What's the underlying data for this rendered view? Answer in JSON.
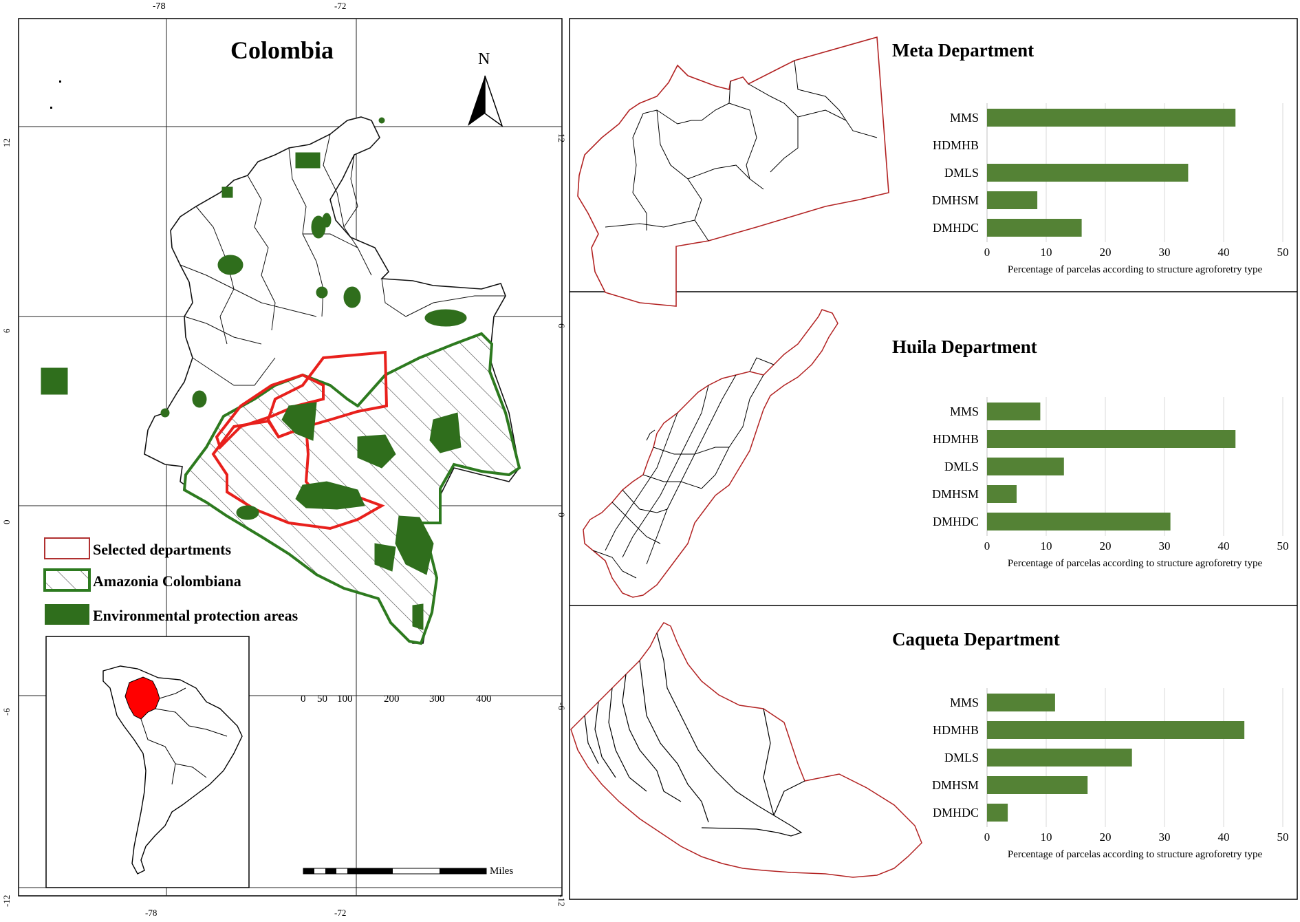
{
  "map": {
    "title": "Colombia",
    "north_label": "N",
    "lon_labels": [
      "-78",
      "-72"
    ],
    "lat_labels": [
      "12",
      "6",
      "0",
      "-6",
      "-12"
    ],
    "legend": {
      "selected": "Selected departments",
      "amazonia": "Amazonia Colombiana",
      "protection": "Environmental protection areas"
    },
    "scale": {
      "ticks": [
        "0",
        "50",
        "100",
        "200",
        "300",
        "400"
      ],
      "unit": "Miles"
    },
    "colors": {
      "department_border": "#e8201c",
      "amazonia_border": "#2d7a1f",
      "protection_fill": "#2f6e1c",
      "highlight": "#ff0000"
    }
  },
  "chart_data": [
    {
      "type": "bar",
      "orientation": "horizontal",
      "title": "Meta Department",
      "categories": [
        "MMS",
        "HDMHB",
        "DMLS",
        "DMHSM",
        "DMHDC"
      ],
      "values": [
        42,
        0,
        34,
        8.5,
        16
      ],
      "xlim": [
        0,
        50
      ],
      "xticks": [
        "0",
        "10",
        "20",
        "30",
        "40",
        "50"
      ],
      "xlabel": "Percentage of parcelas according to structure agroforetry type",
      "bar_color": "#548235"
    },
    {
      "type": "bar",
      "orientation": "horizontal",
      "title": "Huila Department",
      "categories": [
        "MMS",
        "HDMHB",
        "DMLS",
        "DMHSM",
        "DMHDC"
      ],
      "values": [
        9,
        42,
        13,
        5,
        31
      ],
      "xlim": [
        0,
        50
      ],
      "xticks": [
        "0",
        "10",
        "20",
        "30",
        "40",
        "50"
      ],
      "xlabel": "Percentage of parcelas according to structure agroforetry type",
      "bar_color": "#548235"
    },
    {
      "type": "bar",
      "orientation": "horizontal",
      "title": "Caqueta Department",
      "categories": [
        "MMS",
        "HDMHB",
        "DMLS",
        "DMHSM",
        "DMHDC"
      ],
      "values": [
        11.5,
        43.5,
        24.5,
        17,
        3.5
      ],
      "xlim": [
        0,
        50
      ],
      "xticks": [
        "0",
        "10",
        "20",
        "30",
        "40",
        "50"
      ],
      "xlabel": "Percentage of parcelas according to structure agroforetry type",
      "bar_color": "#548235"
    }
  ]
}
